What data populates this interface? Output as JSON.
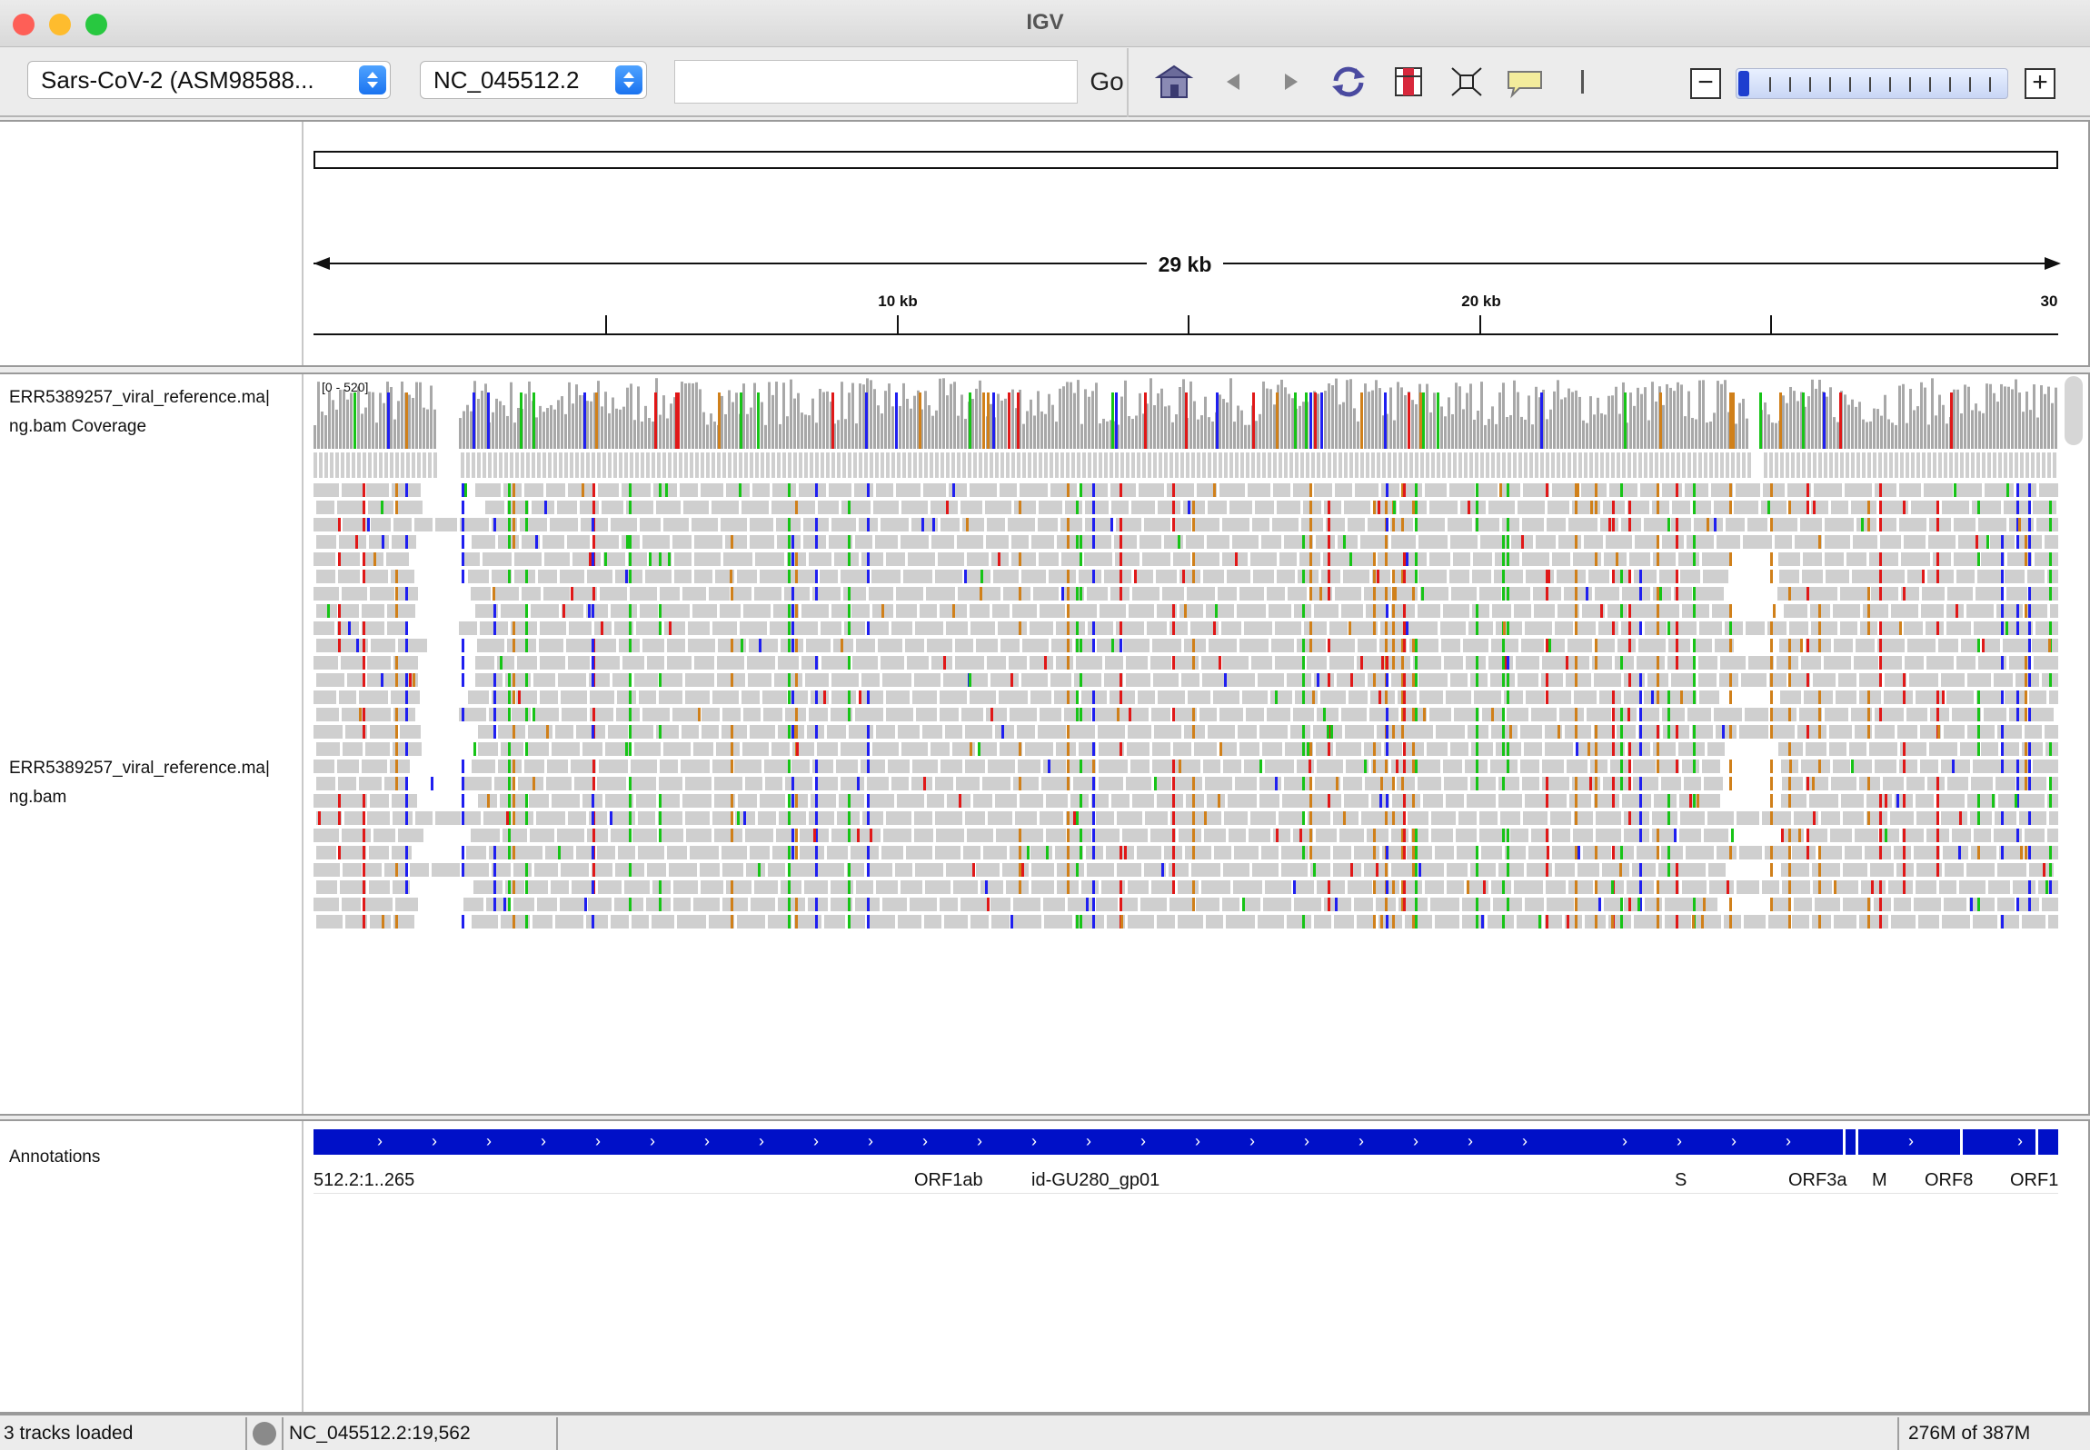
{
  "window": {
    "title": "IGV",
    "colors": {
      "close": "#fe5f57",
      "minimize": "#febc2e",
      "zoom": "#28c840"
    }
  },
  "toolbar": {
    "genome_select": "Sars-CoV-2 (ASM98588...",
    "chromosome_select": "NC_045512.2",
    "locus_input": "",
    "go_label": "Go",
    "icons": [
      "home-icon",
      "back-icon",
      "forward-icon",
      "refresh-icon",
      "roi-icon",
      "fit-to-window-icon",
      "popup-info-icon",
      "ruler-line-icon"
    ],
    "zoom_level": 0
  },
  "ruler": {
    "span_label": "29 kb",
    "tick_labels": [
      "10 kb",
      "20 kb",
      "30"
    ]
  },
  "tracks": {
    "coverage_name_line1": "ERR5389257_viral_reference.ma|",
    "coverage_name_line2": "ng.bam Coverage",
    "coverage_range": "[0 - 520]",
    "alignment_name_line1": "ERR5389257_viral_reference.ma|",
    "alignment_name_line2": "ng.bam",
    "annotations_name": "Annotations"
  },
  "genes": [
    {
      "label": "512.2:1..265"
    },
    {
      "label": "ORF1ab"
    },
    {
      "label": "id-GU280_gp01"
    },
    {
      "label": "S"
    },
    {
      "label": "ORF3a"
    },
    {
      "label": "M"
    },
    {
      "label": "ORF8"
    },
    {
      "label": "ORF1"
    }
  ],
  "colors": {
    "coverage": "#a8a8a8",
    "read": "#cfcfcf",
    "mismatch_A": "#17c417",
    "mismatch_C": "#1f1ff0",
    "mismatch_G": "#d0801a",
    "mismatch_T": "#e01818",
    "gene": "#0010c8"
  },
  "status": {
    "message": "3 tracks loaded",
    "position": "NC_045512.2:19,562",
    "memory": "276M of 387M"
  }
}
